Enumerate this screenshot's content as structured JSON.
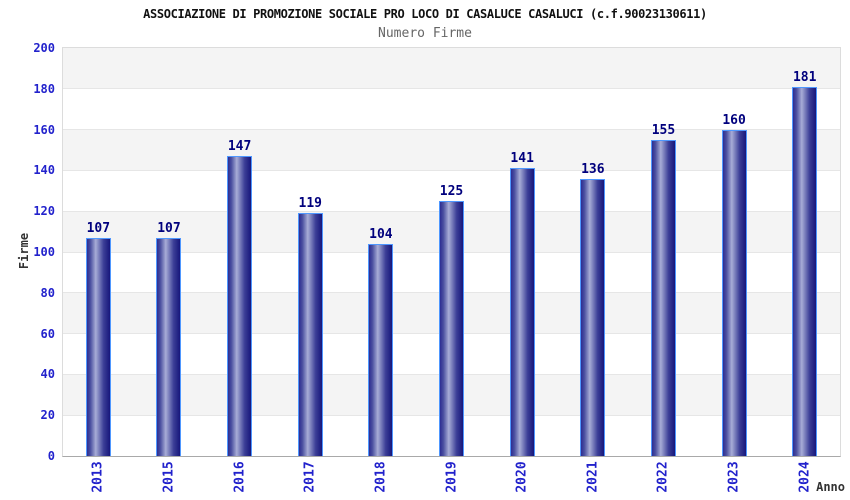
{
  "chart_data": {
    "type": "bar",
    "title": "ASSOCIAZIONE DI PROMOZIONE SOCIALE PRO LOCO DI CASALUCE CASALUCI (c.f.90023130611)",
    "subtitle": "Numero Firme",
    "xlabel": "Anno",
    "ylabel": "Firme",
    "categories": [
      "2013",
      "2015",
      "2016",
      "2017",
      "2018",
      "2019",
      "2020",
      "2021",
      "2022",
      "2023",
      "2024"
    ],
    "values": [
      107,
      107,
      147,
      119,
      104,
      125,
      141,
      136,
      155,
      160,
      181
    ],
    "ylim": [
      0,
      200
    ],
    "yticks": [
      0,
      20,
      40,
      60,
      80,
      100,
      120,
      140,
      160,
      180,
      200
    ],
    "grid": "alternating horizontal bands, light line each 20 units",
    "legend": "none",
    "colors": {
      "title": "#111111",
      "subtitle": "#666666",
      "tick_label": "#2222cc",
      "value_label": "#00007d",
      "axis_title": "#333333",
      "bar_edge": "#4e97ff",
      "bar_dark": "#2d2d92",
      "bar_highlight": "#a7acd6",
      "band_gray": "#f4f4f4",
      "band_white": "#ffffff"
    }
  }
}
